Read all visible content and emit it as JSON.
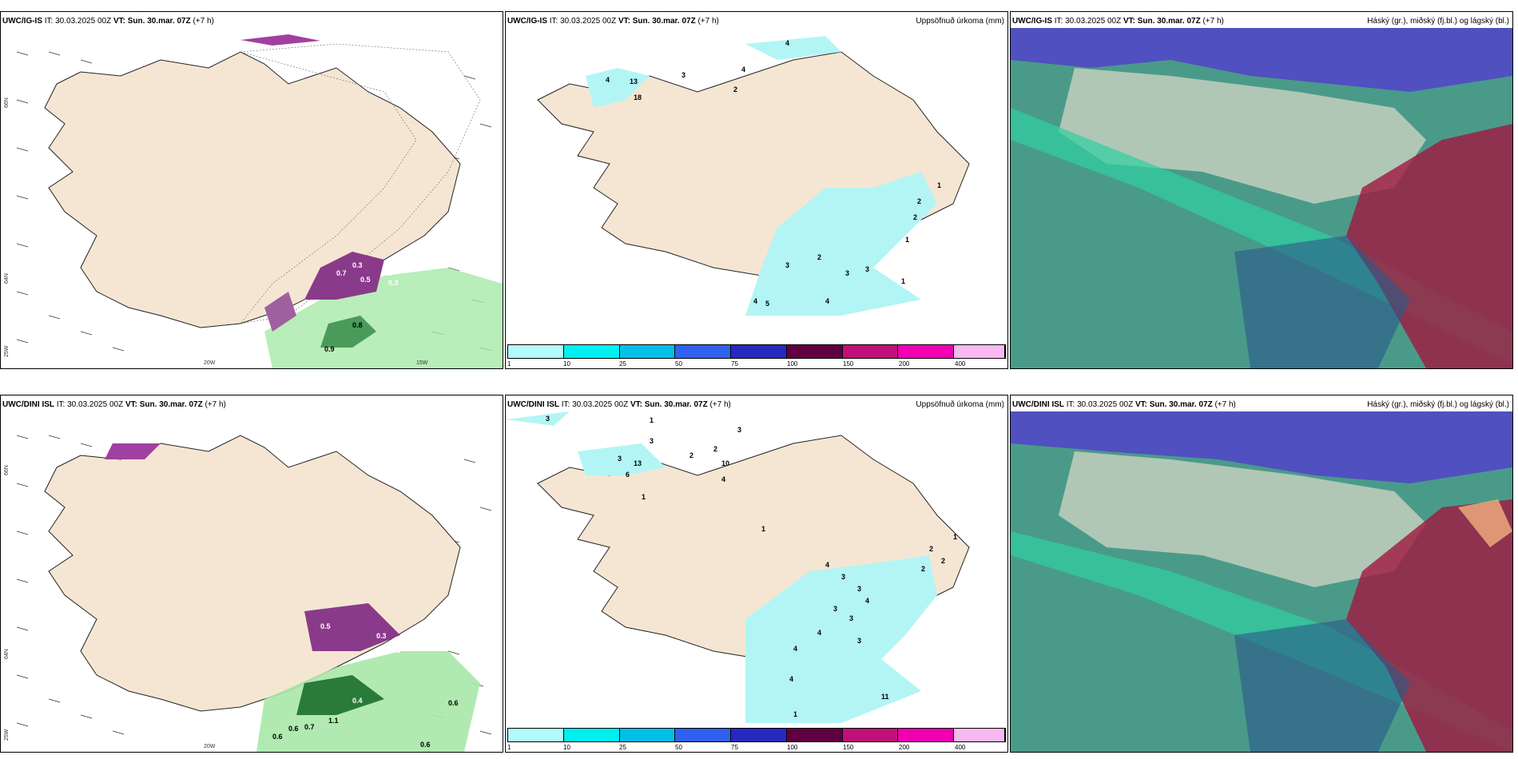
{
  "rows": [
    {
      "model": "UWC/IG-IS",
      "it_label": "IT:",
      "it_value": "30.03.2025 00Z",
      "vt_label": "VT:",
      "vt_value": "Sun. 30.mar. 07Z",
      "lead": "(+7 h)",
      "lat_labels": [
        "66N",
        "64N",
        "25W"
      ],
      "lon_labels": [
        "20W",
        "15W"
      ],
      "wind_values": [
        "0.8",
        "0.9",
        "0.3",
        "0.3",
        "0.5",
        "0.7",
        "0.3"
      ],
      "precip_values": [
        "4",
        "3",
        "2",
        "4",
        "13",
        "18",
        "4",
        "1",
        "2",
        "2",
        "1",
        "3",
        "3",
        "2",
        "3",
        "1",
        "4",
        "4",
        "5"
      ]
    },
    {
      "model": "UWC/DINI ISL",
      "it_label": "IT:",
      "it_value": "30.03.2025 00Z",
      "vt_label": "VT:",
      "vt_value": "Sun. 30.mar. 07Z",
      "lead": "(+7 h)",
      "lat_labels": [
        "66N",
        "64N",
        "25W"
      ],
      "lon_labels": [
        "20W"
      ],
      "wind_values": [
        "0.6",
        "0.6",
        "0.6",
        "0.7",
        "1.1",
        "0.4",
        "0.3",
        "0.5",
        "0.6",
        "0.6"
      ],
      "precip_values": [
        "3",
        "1",
        "3",
        "3",
        "2",
        "2",
        "10",
        "4",
        "3",
        "13",
        "6",
        "1",
        "1",
        "1",
        "2",
        "2",
        "2",
        "4",
        "3",
        "3",
        "4",
        "3",
        "3",
        "4",
        "4",
        "3",
        "4",
        "11",
        "1"
      ]
    }
  ],
  "precip_title": "Uppsöfnuð úrkoma (mm)",
  "cloud_title": "Háský (gr.), miðský (fj.bl.) og lágský (bl.)",
  "colorbar": {
    "ticks": [
      "1",
      "10",
      "25",
      "50",
      "75",
      "100",
      "150",
      "200",
      "400"
    ],
    "colors": [
      "#b3fafa",
      "#00f0f0",
      "#00c0e8",
      "#3060f0",
      "#2828c0",
      "#600040",
      "#c0107a",
      "#f000b0",
      "#f8b8f0"
    ]
  },
  "colors": {
    "land": "#f5e6d3",
    "precip_light": "#b3f5f5",
    "cloud_low": "#4a9a8a",
    "cloud_mid": "#5050c0",
    "cloud_high": "#a01840",
    "precip_green": "#a8e8a8",
    "precip_purple": "#8a3a8a"
  }
}
